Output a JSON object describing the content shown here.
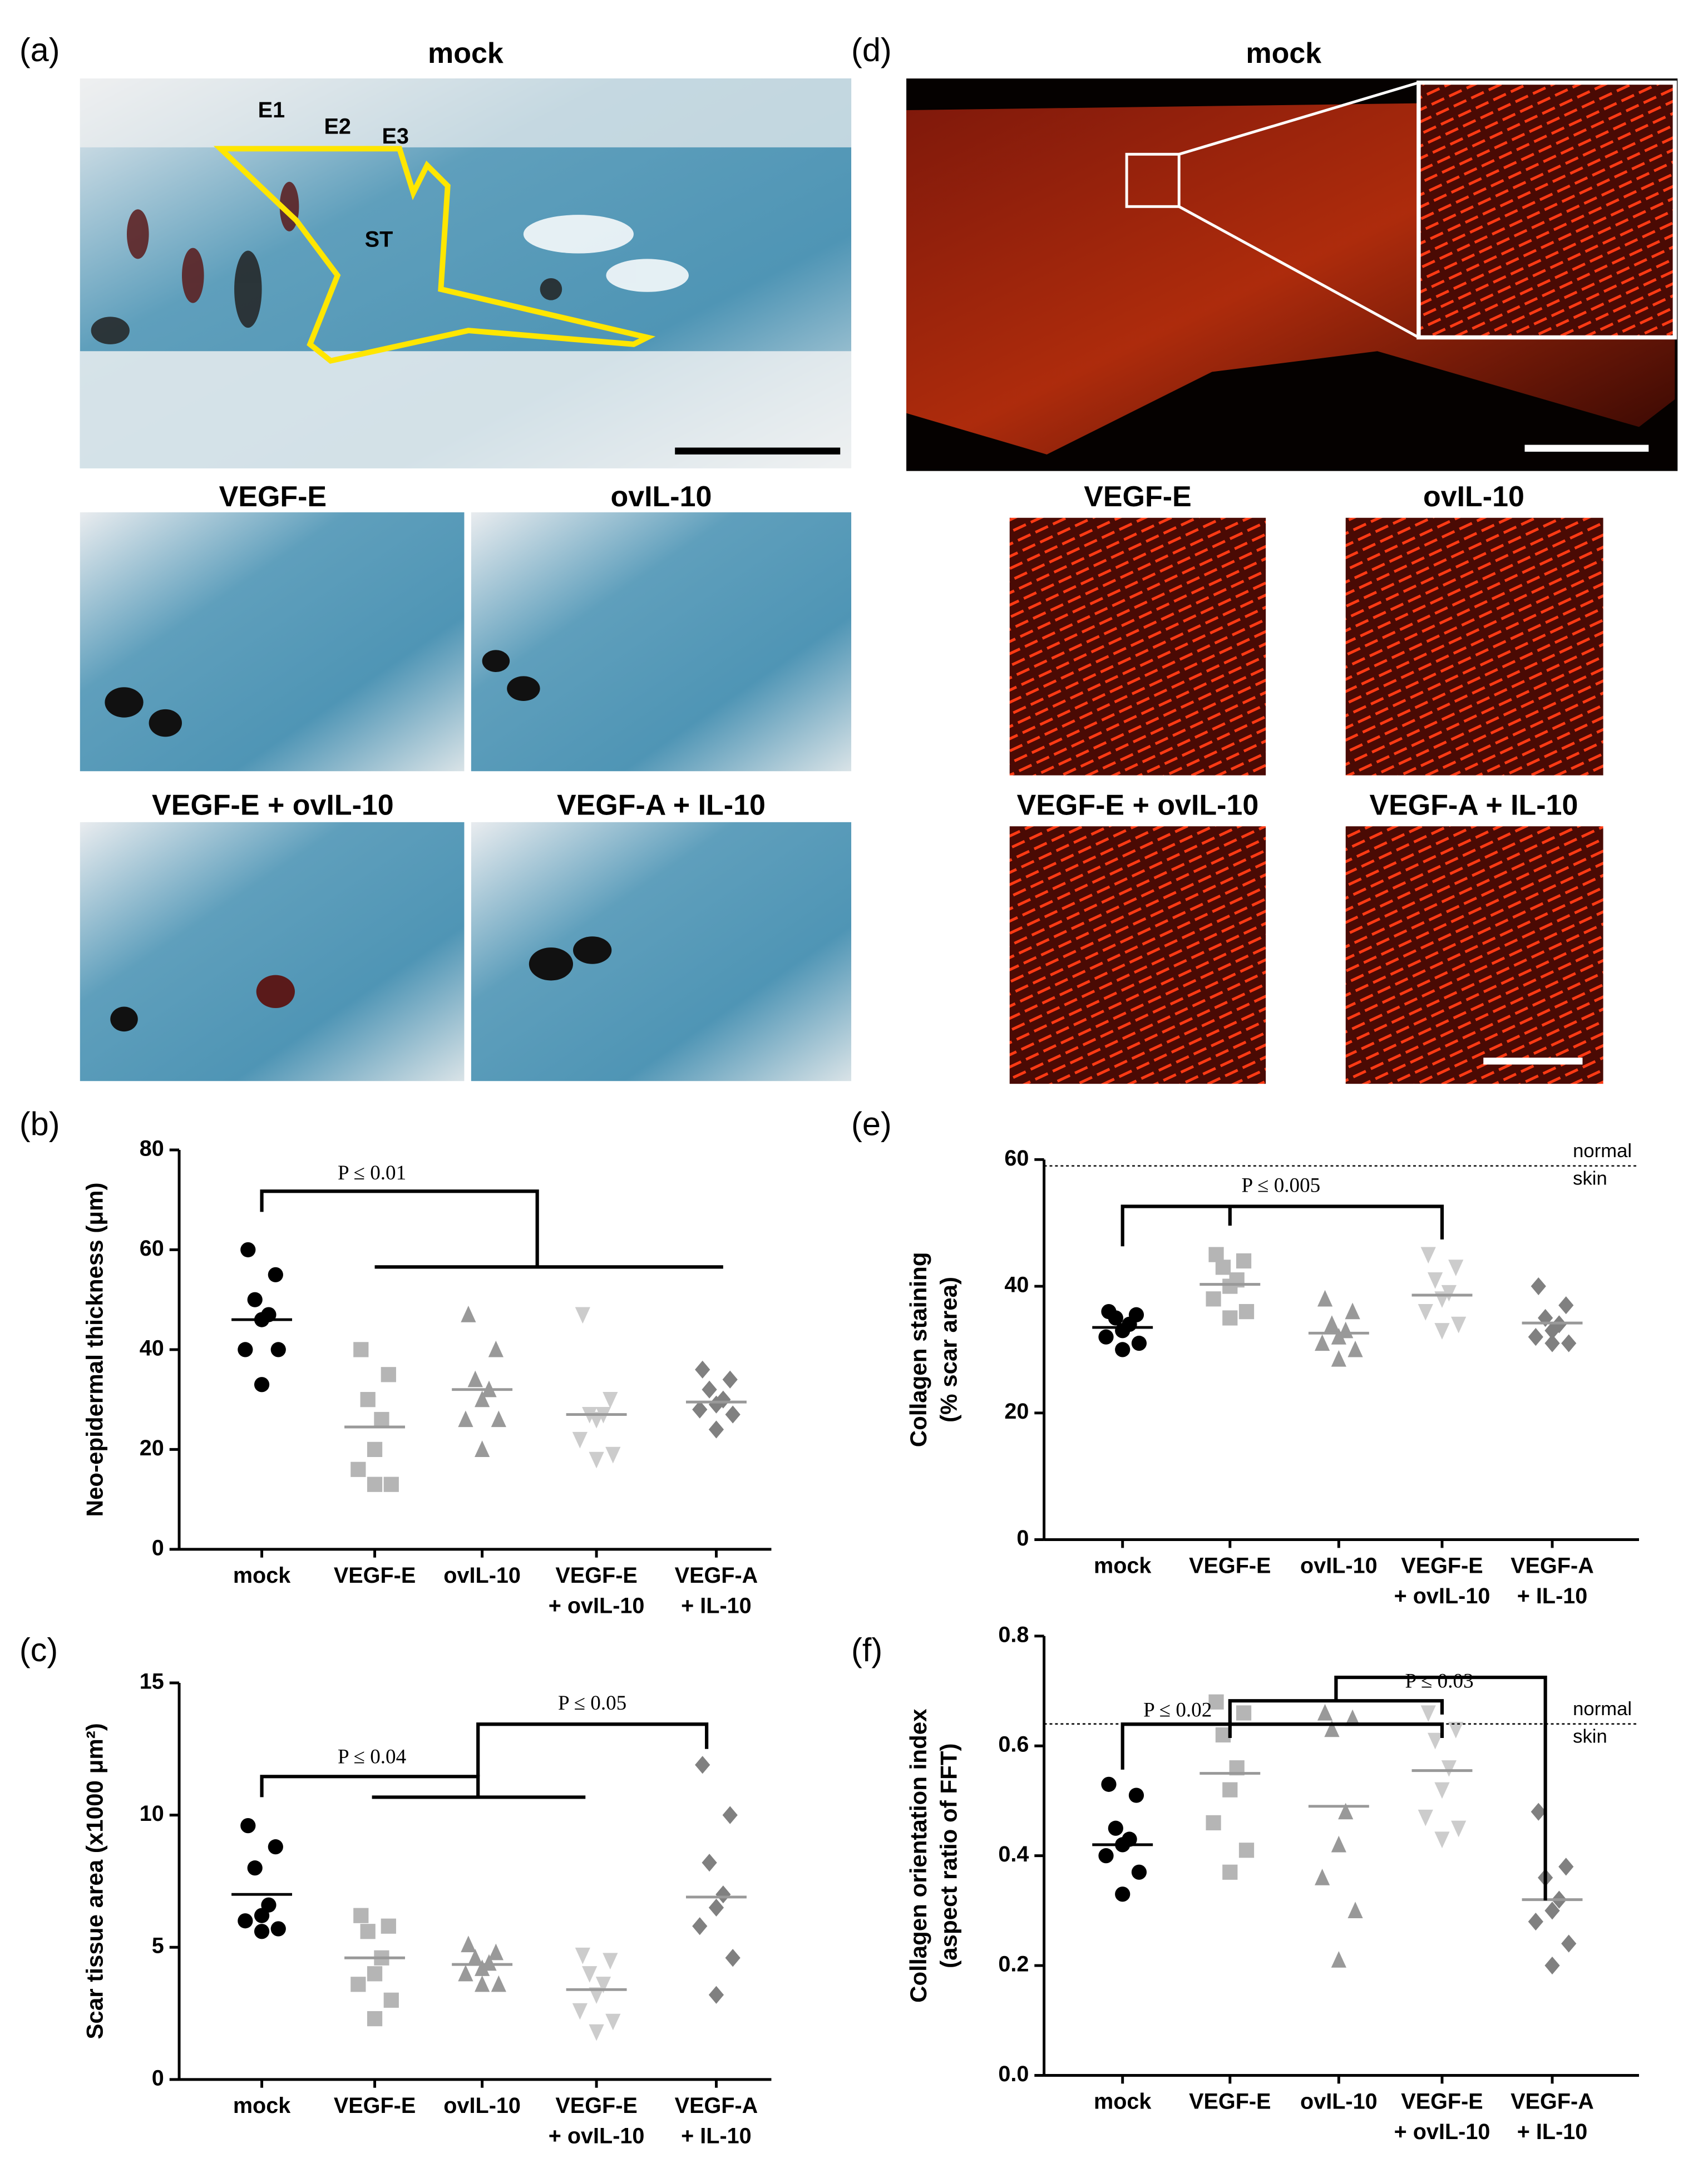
{
  "panel_labels": [
    "(a)",
    "(b)",
    "(c)",
    "(d)",
    "(e)",
    "(f)"
  ],
  "micrographs": {
    "labels": [
      "mock",
      "VEGF-E",
      "ovIL-10",
      "VEGF-E + ovIL-10",
      "VEGF-A + IL-10"
    ],
    "annotations": [
      "E1",
      "E2",
      "E3",
      "ST"
    ]
  },
  "chart_data": [
    {
      "type": "dot",
      "ylabel": [
        "Neo-epidermal thickness (μm)"
      ],
      "categories": [
        [
          "mock"
        ],
        [
          "VEGF-E"
        ],
        [
          "ovIL-10"
        ],
        [
          "VEGF-E",
          "+ ovIL-10"
        ],
        [
          "VEGF-A",
          "+ IL-10"
        ]
      ],
      "values": [
        [
          60,
          55,
          50,
          47,
          46,
          40,
          40,
          33
        ],
        [
          40,
          35,
          30,
          26,
          20,
          16,
          13,
          13
        ],
        [
          47,
          40,
          34,
          32,
          30,
          26,
          26,
          20
        ],
        [
          47,
          30,
          27,
          27,
          26,
          22,
          19,
          18
        ],
        [
          36,
          34,
          32,
          30,
          29,
          28,
          27,
          24
        ]
      ],
      "means": [
        46,
        24.5,
        32,
        27,
        29.5
      ],
      "colors": [
        "#000000",
        "#b5b5b5",
        "#999999",
        "#cccccc",
        "#808080"
      ],
      "markers": [
        "circle",
        "square",
        "triangle",
        "triangle-down",
        "diamond"
      ],
      "ylim": [
        0,
        80
      ],
      "yticks": [
        0,
        20,
        40,
        60,
        80
      ],
      "annotations": [
        "P ≤ 0.01"
      ]
    },
    {
      "type": "dot",
      "ylabel": [
        "Scar tissue area (x1000 μm²)"
      ],
      "categories": [
        [
          "mock"
        ],
        [
          "VEGF-E"
        ],
        [
          "ovIL-10"
        ],
        [
          "VEGF-E",
          "+ ovIL-10"
        ],
        [
          "VEGF-A",
          "+ IL-10"
        ]
      ],
      "values": [
        [
          9.6,
          8.8,
          8.0,
          6.6,
          6.2,
          6.0,
          5.7,
          5.6
        ],
        [
          6.2,
          5.8,
          5.6,
          4.6,
          4.0,
          3.6,
          3.0,
          2.3
        ],
        [
          5.1,
          4.8,
          4.6,
          4.4,
          4.2,
          4.0,
          3.6,
          3.6
        ],
        [
          4.7,
          4.5,
          4.0,
          3.6,
          3.2,
          2.6,
          2.2,
          1.8
        ],
        [
          11.9,
          10.0,
          8.2,
          7.0,
          6.5,
          5.8,
          4.6,
          3.2
        ]
      ],
      "means": [
        7,
        4.6,
        4.35,
        3.4,
        6.9
      ],
      "colors": [
        "#000000",
        "#b5b5b5",
        "#999999",
        "#cccccc",
        "#808080"
      ],
      "markers": [
        "circle",
        "square",
        "triangle",
        "triangle-down",
        "diamond"
      ],
      "ylim": [
        0,
        15
      ],
      "yticks": [
        0,
        5,
        10,
        15
      ],
      "annotations": [
        "P ≤ 0.04",
        "P ≤ 0.05"
      ]
    },
    {
      "type": "dot",
      "ylabel": [
        "Collagen staining",
        "(% scar area)"
      ],
      "categories": [
        [
          "mock"
        ],
        [
          "VEGF-E"
        ],
        [
          "ovIL-10"
        ],
        [
          "VEGF-E",
          "+ ovIL-10"
        ],
        [
          "VEGF-A",
          "+ IL-10"
        ]
      ],
      "values": [
        [
          36,
          35.5,
          35,
          34,
          33,
          32,
          31,
          30
        ],
        [
          45,
          44,
          43,
          41,
          40,
          38,
          36,
          35
        ],
        [
          38,
          36,
          34,
          33,
          32,
          31,
          30,
          28.5
        ],
        [
          45,
          43,
          41,
          39,
          38,
          36,
          34,
          33
        ],
        [
          40,
          37,
          35,
          34,
          33,
          32,
          31,
          31
        ]
      ],
      "means": [
        33.5,
        40.3,
        32.6,
        38.6,
        34.2
      ],
      "colors": [
        "#000000",
        "#b5b5b5",
        "#999999",
        "#cccccc",
        "#808080"
      ],
      "markers": [
        "circle",
        "square",
        "triangle",
        "triangle-down",
        "diamond"
      ],
      "ylim": [
        0,
        60
      ],
      "yticks": [
        0,
        20,
        40,
        60
      ],
      "annotations": [
        "P ≤ 0.005"
      ],
      "reference": {
        "value": 59,
        "label": [
          "normal",
          "skin"
        ]
      }
    },
    {
      "type": "dot",
      "ylabel": [
        "Collagen orientation index",
        "(aspect ratio of FFT)"
      ],
      "categories": [
        [
          "mock"
        ],
        [
          "VEGF-E"
        ],
        [
          "ovIL-10"
        ],
        [
          "VEGF-E",
          "+ ovIL-10"
        ],
        [
          "VEGF-A",
          "+ IL-10"
        ]
      ],
      "values": [
        [
          0.53,
          0.51,
          0.45,
          0.43,
          0.42,
          0.4,
          0.37,
          0.33
        ],
        [
          0.68,
          0.66,
          0.62,
          0.56,
          0.52,
          0.46,
          0.41,
          0.37
        ],
        [
          0.66,
          0.65,
          0.63,
          0.48,
          0.42,
          0.36,
          0.3,
          0.21
        ],
        [
          0.66,
          0.63,
          0.61,
          0.56,
          0.52,
          0.47,
          0.45,
          0.43
        ],
        [
          0.48,
          0.38,
          0.36,
          0.32,
          0.3,
          0.28,
          0.24,
          0.2
        ]
      ],
      "means": [
        0.42,
        0.55,
        0.49,
        0.555,
        0.32
      ],
      "colors": [
        "#000000",
        "#b5b5b5",
        "#999999",
        "#cccccc",
        "#808080"
      ],
      "markers": [
        "circle",
        "square",
        "triangle",
        "triangle-down",
        "diamond"
      ],
      "ylim": [
        0,
        0.8
      ],
      "yticks": [
        {
          "value": 0,
          "label": "0.0"
        },
        0.2,
        0.4,
        0.6,
        0.8
      ],
      "annotations": [
        "P ≤ 0.02",
        "P ≤ 0.03"
      ],
      "reference": {
        "value": 0.64,
        "label": [
          "normal",
          "skin"
        ]
      }
    }
  ]
}
